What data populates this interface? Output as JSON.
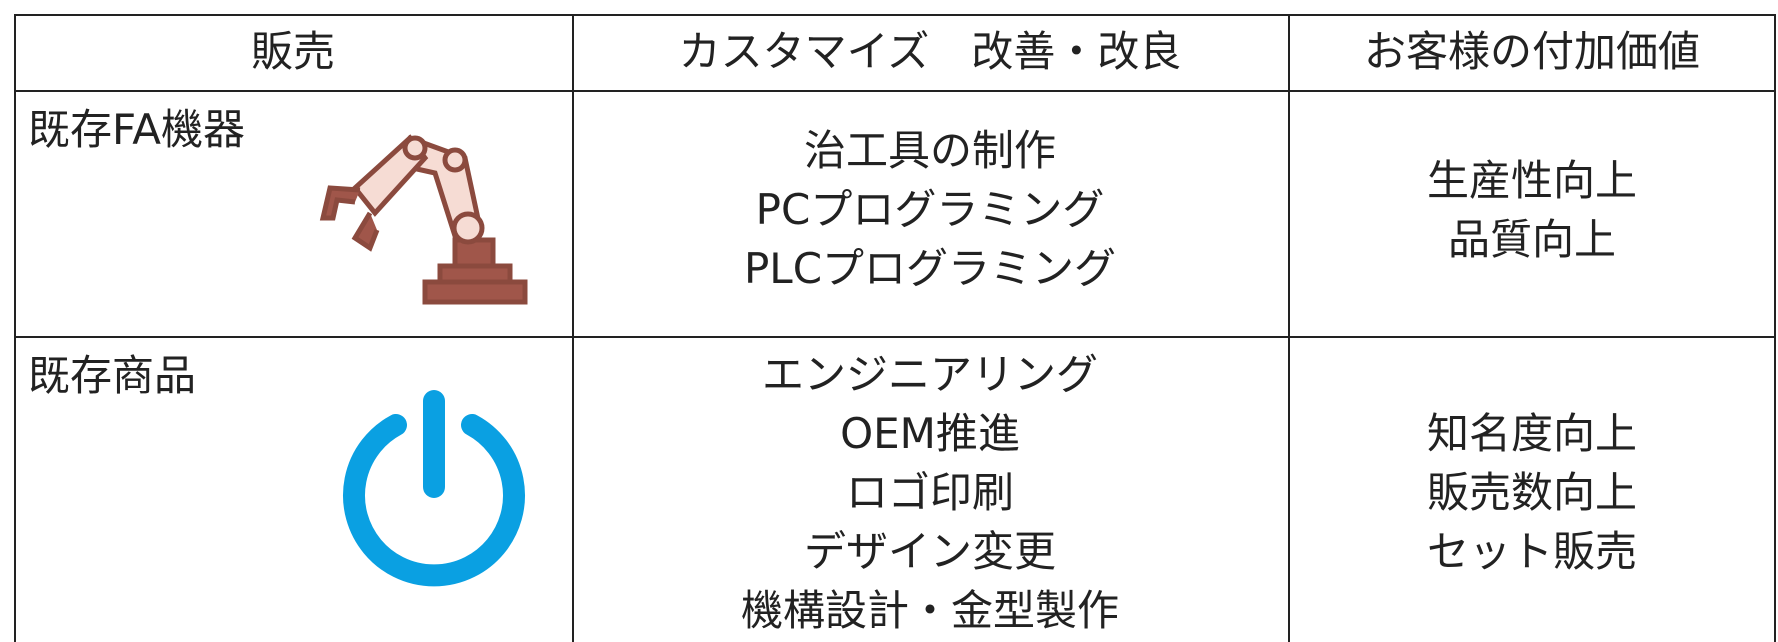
{
  "table": {
    "header": [
      "販売",
      "カスタマイズ　改善・改良",
      "お客様の付加価値"
    ],
    "rows": [
      {
        "label": "既存FA機器",
        "customization": [
          "治工具の制作",
          "PCプログラミング",
          "PLCプログラミング"
        ],
        "value": [
          "生産性向上",
          "品質向上"
        ]
      },
      {
        "label": "既存商品",
        "customization": [
          "エンジニアリング",
          "OEM推進",
          "ロゴ印刷",
          "デザイン変更",
          "機構設計・金型製作"
        ],
        "value": [
          "知名度向上",
          "販売数向上",
          "セット販売"
        ]
      }
    ]
  }
}
